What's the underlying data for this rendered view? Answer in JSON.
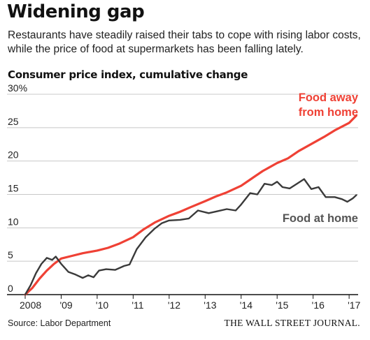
{
  "header": {
    "title": "Widening gap",
    "subtitle": "Restaurants have steadily raised their tabs to cope with rising labor costs, while the price of food at supermarkets has been falling lately."
  },
  "footer": {
    "source": "Source: Labor Department",
    "brand": "THE WALL STREET JOURNAL."
  },
  "colors": {
    "away": "#ef4135",
    "home": "#3a3a3a",
    "grid": "#c8c8c8",
    "axis": "#111111"
  },
  "chart_data": {
    "type": "line",
    "title": "Consumer price index, cumulative change",
    "xlabel": "",
    "ylabel": "",
    "xlim": [
      2008,
      2017.25
    ],
    "ylim": [
      0,
      30
    ],
    "grid": true,
    "y_ticks": [
      0,
      5,
      10,
      15,
      20,
      25,
      30
    ],
    "y_tick_labels": [
      "0",
      "5",
      "10",
      "15",
      "20",
      "25",
      "30%"
    ],
    "x_ticks": [
      2008,
      2009,
      2010,
      2011,
      2012,
      2013,
      2014,
      2015,
      2016,
      2017
    ],
    "x_tick_labels": [
      "2008",
      "'09",
      "'10",
      "'11",
      "'12",
      "'13",
      "'14",
      "'15",
      "'16",
      "'17"
    ],
    "series": [
      {
        "name": "Food away from home",
        "label_lines": [
          "Food away",
          "from home"
        ],
        "points": [
          [
            2008.0,
            0.0
          ],
          [
            2008.2,
            1.0
          ],
          [
            2008.4,
            2.4
          ],
          [
            2008.6,
            3.6
          ],
          [
            2008.8,
            4.6
          ],
          [
            2009.0,
            5.4
          ],
          [
            2009.3,
            5.8
          ],
          [
            2009.6,
            6.2
          ],
          [
            2010.0,
            6.6
          ],
          [
            2010.3,
            7.0
          ],
          [
            2010.6,
            7.6
          ],
          [
            2011.0,
            8.6
          ],
          [
            2011.3,
            9.8
          ],
          [
            2011.6,
            10.8
          ],
          [
            2012.0,
            11.8
          ],
          [
            2012.3,
            12.4
          ],
          [
            2012.6,
            13.1
          ],
          [
            2013.0,
            14.0
          ],
          [
            2013.3,
            14.7
          ],
          [
            2013.6,
            15.3
          ],
          [
            2014.0,
            16.3
          ],
          [
            2014.3,
            17.4
          ],
          [
            2014.6,
            18.5
          ],
          [
            2015.0,
            19.7
          ],
          [
            2015.3,
            20.4
          ],
          [
            2015.6,
            21.5
          ],
          [
            2016.0,
            22.7
          ],
          [
            2016.3,
            23.6
          ],
          [
            2016.6,
            24.6
          ],
          [
            2017.0,
            25.7
          ],
          [
            2017.2,
            26.8
          ]
        ]
      },
      {
        "name": "Food at home",
        "label_lines": [
          "Food at home"
        ],
        "points": [
          [
            2008.0,
            0.0
          ],
          [
            2008.15,
            1.4
          ],
          [
            2008.3,
            3.2
          ],
          [
            2008.45,
            4.6
          ],
          [
            2008.6,
            5.5
          ],
          [
            2008.75,
            5.2
          ],
          [
            2008.85,
            5.7
          ],
          [
            2009.0,
            4.6
          ],
          [
            2009.2,
            3.4
          ],
          [
            2009.4,
            3.0
          ],
          [
            2009.6,
            2.5
          ],
          [
            2009.75,
            2.9
          ],
          [
            2009.9,
            2.6
          ],
          [
            2010.05,
            3.6
          ],
          [
            2010.25,
            3.8
          ],
          [
            2010.5,
            3.7
          ],
          [
            2010.75,
            4.3
          ],
          [
            2010.9,
            4.5
          ],
          [
            2011.1,
            6.8
          ],
          [
            2011.35,
            8.6
          ],
          [
            2011.6,
            9.9
          ],
          [
            2011.8,
            10.7
          ],
          [
            2012.0,
            11.1
          ],
          [
            2012.3,
            11.2
          ],
          [
            2012.55,
            11.4
          ],
          [
            2012.8,
            12.6
          ],
          [
            2013.1,
            12.2
          ],
          [
            2013.35,
            12.5
          ],
          [
            2013.6,
            12.8
          ],
          [
            2013.85,
            12.6
          ],
          [
            2014.0,
            13.5
          ],
          [
            2014.25,
            15.2
          ],
          [
            2014.45,
            15.0
          ],
          [
            2014.65,
            16.6
          ],
          [
            2014.85,
            16.4
          ],
          [
            2015.0,
            16.9
          ],
          [
            2015.15,
            16.1
          ],
          [
            2015.35,
            15.9
          ],
          [
            2015.55,
            16.6
          ],
          [
            2015.75,
            17.3
          ],
          [
            2015.95,
            15.8
          ],
          [
            2016.15,
            16.1
          ],
          [
            2016.35,
            14.6
          ],
          [
            2016.6,
            14.6
          ],
          [
            2016.8,
            14.3
          ],
          [
            2016.95,
            13.9
          ],
          [
            2017.1,
            14.4
          ],
          [
            2017.2,
            14.9
          ]
        ]
      }
    ]
  }
}
